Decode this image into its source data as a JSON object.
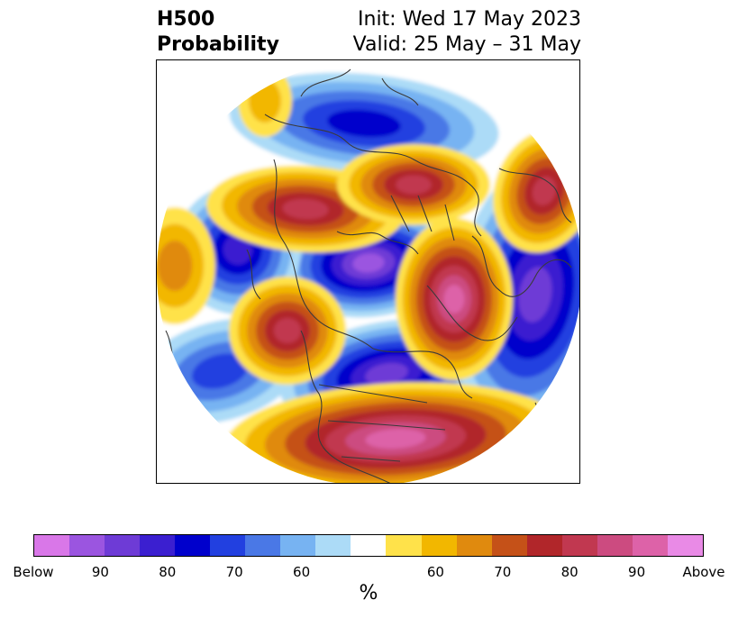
{
  "title": {
    "left_line1": "H500",
    "left_line2": "Probability",
    "right_line1": "Init: Wed 17 May 2023",
    "right_line2": "Valid: 25 May – 31 May"
  },
  "map": {
    "projection": "polar-stereographic-north",
    "colors": {
      "below_95": "#d977e8",
      "below_90": "#9b55e0",
      "below_85": "#6e3bd6",
      "below_80": "#3b1fd0",
      "below_75": "#0000cc",
      "below_70": "#2240e0",
      "below_65": "#4a78e6",
      "below_60": "#77b3f2",
      "below_55": "#acdbf7",
      "neutral": "#ffffff",
      "above_55": "#ffe24a",
      "above_60": "#f2b700",
      "above_65": "#e08a0e",
      "above_70": "#c55118",
      "above_75": "#b1262a",
      "above_80": "#c13850",
      "above_85": "#cc4b80",
      "above_90": "#dd62a8",
      "above_95": "#e98ae6"
    }
  },
  "colorbar": {
    "colors": [
      "#d977e8",
      "#9b55e0",
      "#6e3bd6",
      "#3b1fd0",
      "#0000cc",
      "#2240e0",
      "#4a78e6",
      "#77b3f2",
      "#acdbf7",
      "#ffffff",
      "#ffe24a",
      "#f2b700",
      "#e08a0e",
      "#c55118",
      "#b1262a",
      "#c13850",
      "#cc4b80",
      "#dd62a8",
      "#e98ae6"
    ],
    "tick_labels": [
      "Below",
      "90",
      "80",
      "70",
      "60",
      "60",
      "70",
      "80",
      "90",
      "Above"
    ],
    "tick_fractions": [
      0.0,
      0.1,
      0.2,
      0.3,
      0.4,
      0.6,
      0.7,
      0.8,
      0.9,
      1.0
    ],
    "unit_label": "%"
  }
}
